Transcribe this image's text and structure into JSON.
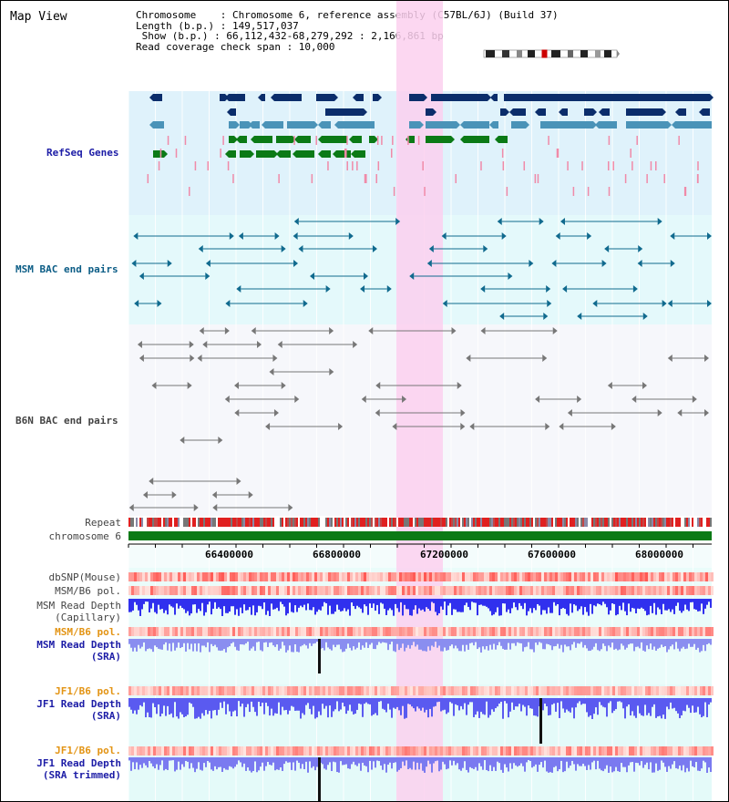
{
  "title": "Map View",
  "info": {
    "chromosome": "Chromosome    : Chromosome 6, reference assembly (C57BL/6J) (Build 37)",
    "length": "Length (b.p.) : 149,517,037",
    "show": " Show (b.p.) : 66,112,432-68,279,292 : 2,166,861 bp",
    "coverage": "Read coverage check span : 10,000"
  },
  "tracks": {
    "refseq": "RefSeq Genes",
    "msm_bac": "MSM BAC end pairs",
    "b6n_bac": "B6N BAC end pairs",
    "repeat": "Repeat",
    "chromosome": "chromosome 6",
    "dbsnp": "dbSNP(Mouse)",
    "msm_b6_pol_1": "MSM/B6 pol.",
    "msm_depth_cap_1": "MSM Read Depth",
    "msm_depth_cap_2": "(Capillary)",
    "msm_b6_pol_2": "MSM/B6 pol.",
    "msm_depth_sra_1": "MSM Read Depth",
    "msm_depth_sra_2": "(SRA)",
    "jf1_b6_pol_1": "JF1/B6 pol.",
    "jf1_depth_sra_1": "JF1 Read Depth",
    "jf1_depth_sra_2": "(SRA)",
    "jf1_b6_pol_2": "JF1/B6 pol.",
    "jf1_depth_trim_1": "JF1 Read Depth",
    "jf1_depth_trim_2": "(SRA trimmed)"
  },
  "axis": {
    "ticks": [
      "66400000",
      "66800000",
      "67200000",
      "67600000",
      "68000000"
    ]
  },
  "colors": {
    "highlight": "#fcd7f2",
    "gene_blue": "#0b2d6b",
    "gene_green": "#0b7a16",
    "chromosome": "#0b7a16",
    "depth_blue": "#2a2aff",
    "pol_red": "#f05a5a"
  }
}
